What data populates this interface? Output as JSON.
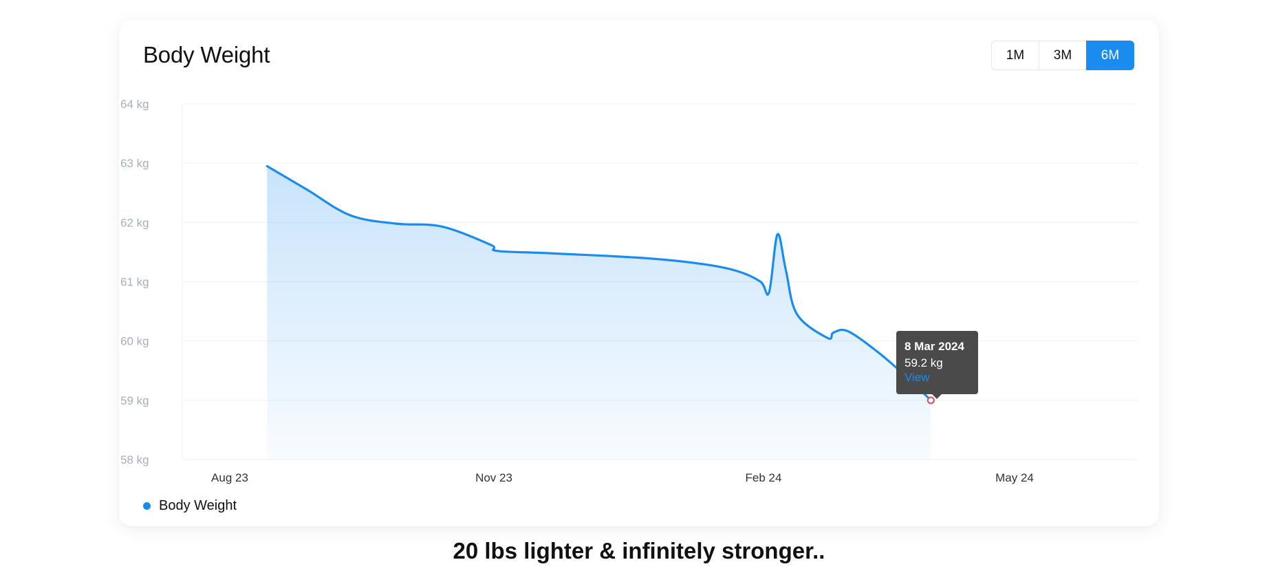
{
  "card": {
    "title": "Body Weight",
    "range_buttons": [
      {
        "label": "1M",
        "active": false
      },
      {
        "label": "3M",
        "active": false
      },
      {
        "label": "6M",
        "active": true
      }
    ],
    "legend_label": "Body Weight"
  },
  "tooltip": {
    "date": "8 Mar 2024",
    "value": "59.2 kg",
    "link": "View"
  },
  "caption": "20 lbs lighter & infinitely stronger..",
  "colors": {
    "line": "#1a8cf0",
    "grid": "#eef0f3",
    "tick_label": "#a9afba",
    "marker": "#e0475c"
  },
  "chart_data": {
    "type": "area",
    "title": "Body Weight",
    "xlabel": "",
    "ylabel": "",
    "ylim": [
      58,
      64
    ],
    "y_ticks": [
      64,
      63,
      62,
      61,
      60,
      59,
      58
    ],
    "y_tick_suffix": " kg",
    "x_ticks": [
      {
        "label": "Aug 23",
        "date": "2023-08-01"
      },
      {
        "label": "Nov 23",
        "date": "2023-11-01"
      },
      {
        "label": "Feb 24",
        "date": "2024-02-01"
      },
      {
        "label": "May 24",
        "date": "2024-05-01"
      }
    ],
    "grid": true,
    "legend": "bottom-left",
    "series": [
      {
        "name": "Body Weight",
        "points": [
          {
            "x": "2023-08-14",
            "y": 62.95
          },
          {
            "x": "2023-08-28",
            "y": 62.55
          },
          {
            "x": "2023-09-12",
            "y": 62.12
          },
          {
            "x": "2023-09-28",
            "y": 61.98
          },
          {
            "x": "2023-10-14",
            "y": 61.93
          },
          {
            "x": "2023-10-31",
            "y": 61.62
          },
          {
            "x": "2023-11-02",
            "y": 61.52
          },
          {
            "x": "2023-11-20",
            "y": 61.48
          },
          {
            "x": "2023-12-22",
            "y": 61.4
          },
          {
            "x": "2024-01-11",
            "y": 61.3
          },
          {
            "x": "2024-01-23",
            "y": 61.18
          },
          {
            "x": "2024-01-31",
            "y": 61.0
          },
          {
            "x": "2024-02-03",
            "y": 60.82
          },
          {
            "x": "2024-02-06",
            "y": 61.8
          },
          {
            "x": "2024-02-09",
            "y": 61.2
          },
          {
            "x": "2024-02-13",
            "y": 60.45
          },
          {
            "x": "2024-02-24",
            "y": 60.05
          },
          {
            "x": "2024-02-26",
            "y": 60.14
          },
          {
            "x": "2024-03-02",
            "y": 60.17
          },
          {
            "x": "2024-03-12",
            "y": 59.85
          },
          {
            "x": "2024-03-22",
            "y": 59.45
          },
          {
            "x": "2024-04-01",
            "y": 59.0
          }
        ]
      }
    ],
    "highlight": {
      "x": "2024-04-01",
      "y": 59.0
    }
  }
}
